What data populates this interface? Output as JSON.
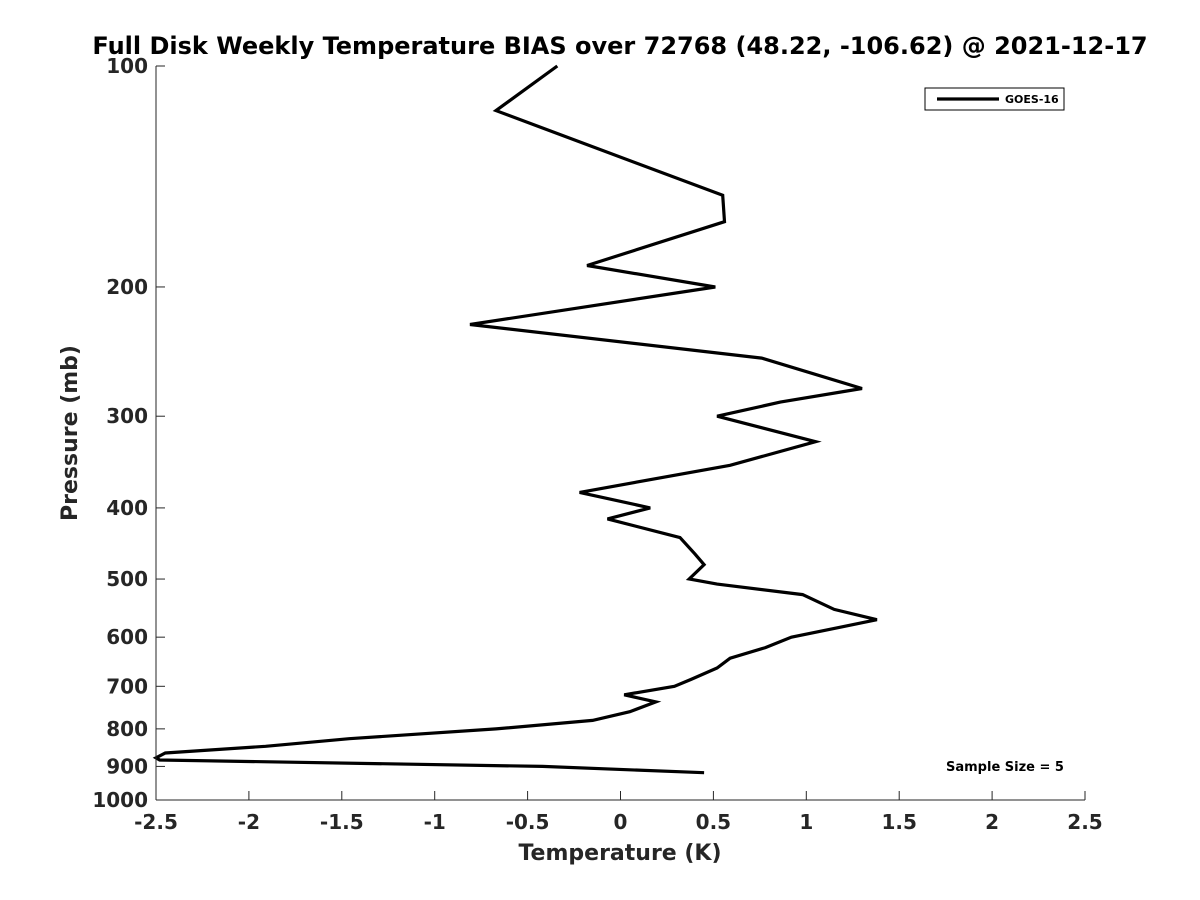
{
  "chart_data": {
    "type": "line",
    "title": "Full Disk Weekly Temperature BIAS over 72768 (48.22, -106.62) @ 2021-12-17",
    "xlabel": "Temperature (K)",
    "ylabel": "Pressure (mb)",
    "xlim": [
      -2.5,
      2.5
    ],
    "ylim": [
      100,
      1000
    ],
    "y_scale": "log",
    "y_reversed": true,
    "grid": false,
    "x_ticks": [
      -2.5,
      -2,
      -1.5,
      -1,
      -0.5,
      0,
      0.5,
      1,
      1.5,
      2,
      2.5
    ],
    "x_tick_labels": [
      "-2.5",
      "-2",
      "-1.5",
      "-1",
      "-0.5",
      "0",
      "0.5",
      "1",
      "1.5",
      "2",
      "2.5"
    ],
    "y_ticks": [
      100,
      200,
      300,
      400,
      500,
      600,
      700,
      800,
      900,
      1000
    ],
    "y_tick_labels": [
      "100",
      "200",
      "300",
      "400",
      "500",
      "600",
      "700",
      "800",
      "900",
      "1000"
    ],
    "legend": {
      "placement": "top-right",
      "entries": [
        "GOES-16"
      ]
    },
    "annotation": "Sample Size = 5",
    "series": [
      {
        "name": "GOES-16",
        "color": "#000000",
        "points": [
          {
            "t": -0.34,
            "p": 100
          },
          {
            "t": -0.67,
            "p": 115
          },
          {
            "t": 0.55,
            "p": 150
          },
          {
            "t": 0.56,
            "p": 163
          },
          {
            "t": -0.18,
            "p": 187
          },
          {
            "t": 0.51,
            "p": 200
          },
          {
            "t": -0.81,
            "p": 225
          },
          {
            "t": 0.76,
            "p": 250
          },
          {
            "t": 1.3,
            "p": 275
          },
          {
            "t": 0.86,
            "p": 287
          },
          {
            "t": 0.52,
            "p": 300
          },
          {
            "t": 1.05,
            "p": 325
          },
          {
            "t": 0.59,
            "p": 350
          },
          {
            "t": -0.22,
            "p": 381
          },
          {
            "t": 0.16,
            "p": 400
          },
          {
            "t": -0.07,
            "p": 414
          },
          {
            "t": 0.32,
            "p": 439
          },
          {
            "t": 0.4,
            "p": 462
          },
          {
            "t": 0.45,
            "p": 478
          },
          {
            "t": 0.37,
            "p": 500
          },
          {
            "t": 0.52,
            "p": 508
          },
          {
            "t": 0.98,
            "p": 525
          },
          {
            "t": 1.15,
            "p": 550
          },
          {
            "t": 1.38,
            "p": 568
          },
          {
            "t": 1.19,
            "p": 581
          },
          {
            "t": 0.92,
            "p": 600
          },
          {
            "t": 0.78,
            "p": 620
          },
          {
            "t": 0.59,
            "p": 641
          },
          {
            "t": 0.52,
            "p": 661
          },
          {
            "t": 0.38,
            "p": 685
          },
          {
            "t": 0.29,
            "p": 700
          },
          {
            "t": 0.02,
            "p": 719
          },
          {
            "t": 0.19,
            "p": 735
          },
          {
            "t": 0.05,
            "p": 758
          },
          {
            "t": -0.15,
            "p": 779
          },
          {
            "t": -0.67,
            "p": 800
          },
          {
            "t": -1.46,
            "p": 825
          },
          {
            "t": -1.91,
            "p": 845
          },
          {
            "t": -2.45,
            "p": 863
          },
          {
            "t": -2.5,
            "p": 876
          },
          {
            "t": -2.48,
            "p": 882
          },
          {
            "t": -0.42,
            "p": 900
          },
          {
            "t": 0.45,
            "p": 918
          }
        ]
      }
    ]
  }
}
